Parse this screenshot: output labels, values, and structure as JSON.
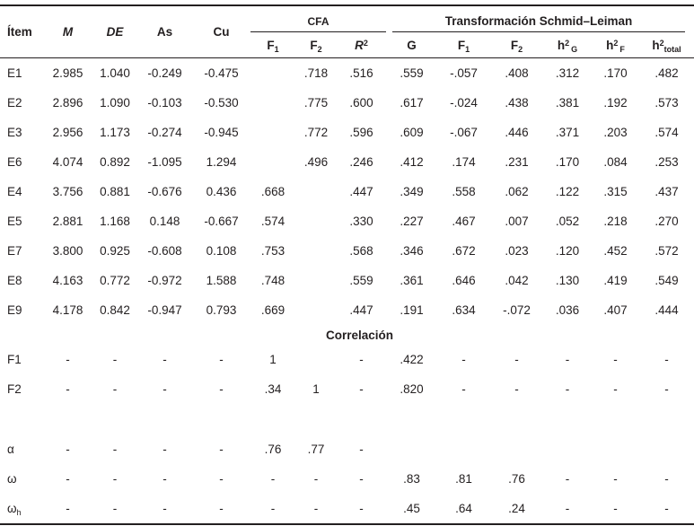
{
  "colors": {
    "text": "#231f20",
    "rule": "#231f20",
    "background": "#ffffff"
  },
  "table": {
    "stub_header": "Ítem",
    "descriptive_headers": {
      "m": "M",
      "de": "DE",
      "as": "As",
      "cu": "Cu"
    },
    "spanners": {
      "cfa": "CFA",
      "schmid_leiman": "Transformación Schmid–Leiman"
    },
    "sub_headers": {
      "cfa_f1": {
        "base": "F",
        "sub": "1"
      },
      "cfa_f2": {
        "base": "F",
        "sub": "2"
      },
      "r2": {
        "base": "R",
        "sup": "2"
      },
      "g": "G",
      "sl_f1": {
        "base": "F",
        "sub": "1"
      },
      "sl_f2": {
        "base": "F",
        "sub": "2"
      },
      "h2_g": {
        "base": "h",
        "sup": "2",
        "sub": "G"
      },
      "h2_f": {
        "base": "h",
        "sup": "2",
        "sub": "F"
      },
      "h2_total": {
        "base": "h",
        "sup": "2",
        "sub": "total"
      }
    },
    "rows": [
      {
        "label": "E1",
        "cells": [
          "2.985",
          "1.040",
          "-0.249",
          "-0.475",
          "",
          ".718",
          ".516",
          ".559",
          "-.057",
          ".408",
          ".312",
          ".170",
          ".482"
        ]
      },
      {
        "label": "E2",
        "cells": [
          "2.896",
          "1.090",
          "-0.103",
          "-0.530",
          "",
          ".775",
          ".600",
          ".617",
          "-.024",
          ".438",
          ".381",
          ".192",
          ".573"
        ]
      },
      {
        "label": "E3",
        "cells": [
          "2.956",
          "1.173",
          "-0.274",
          "-0.945",
          "",
          ".772",
          ".596",
          ".609",
          "-.067",
          ".446",
          ".371",
          ".203",
          ".574"
        ]
      },
      {
        "label": "E6",
        "cells": [
          "4.074",
          "0.892",
          "-1.095",
          "1.294",
          "",
          ".496",
          ".246",
          ".412",
          ".174",
          ".231",
          ".170",
          ".084",
          ".253"
        ]
      },
      {
        "label": "E4",
        "cells": [
          "3.756",
          "0.881",
          "-0.676",
          "0.436",
          ".668",
          "",
          ".447",
          ".349",
          ".558",
          ".062",
          ".122",
          ".315",
          ".437"
        ]
      },
      {
        "label": "E5",
        "cells": [
          "2.881",
          "1.168",
          "0.148",
          "-0.667",
          ".574",
          "",
          ".330",
          ".227",
          ".467",
          ".007",
          ".052",
          ".218",
          ".270"
        ]
      },
      {
        "label": "E7",
        "cells": [
          "3.800",
          "0.925",
          "-0.608",
          "0.108",
          ".753",
          "",
          ".568",
          ".346",
          ".672",
          ".023",
          ".120",
          ".452",
          ".572"
        ]
      },
      {
        "label": "E8",
        "cells": [
          "4.163",
          "0.772",
          "-0.972",
          "1.588",
          ".748",
          "",
          ".559",
          ".361",
          ".646",
          ".042",
          ".130",
          ".419",
          ".549"
        ]
      },
      {
        "label": "E9",
        "cells": [
          "4.178",
          "0.842",
          "-0.947",
          "0.793",
          ".669",
          "",
          ".447",
          ".191",
          ".634",
          "-.072",
          ".036",
          ".407",
          ".444"
        ]
      },
      {
        "type": "section",
        "label": "Correlación"
      },
      {
        "label": "F1",
        "cells": [
          "-",
          "-",
          "-",
          "-",
          "1",
          "",
          "-",
          ".422",
          "-",
          "-",
          "-",
          "-",
          "-"
        ]
      },
      {
        "label": "F2",
        "cells": [
          "-",
          "-",
          "-",
          "-",
          ".34",
          "1",
          "-",
          ".820",
          "-",
          "-",
          "-",
          "-",
          "-"
        ]
      },
      {
        "type": "spacer"
      },
      {
        "label": "α",
        "cells": [
          "-",
          "-",
          "-",
          "-",
          ".76",
          ".77",
          "-",
          "",
          "",
          "",
          "",
          "",
          ""
        ]
      },
      {
        "label": "ω",
        "cells": [
          "-",
          "-",
          "-",
          "-",
          "-",
          "-",
          "-",
          ".83",
          ".81",
          ".76",
          "-",
          "-",
          "-"
        ]
      },
      {
        "label": "ω",
        "label_sub": "h",
        "cells": [
          "-",
          "-",
          "-",
          "-",
          "-",
          "-",
          "-",
          ".45",
          ".64",
          ".24",
          "-",
          "-",
          "-"
        ]
      }
    ]
  }
}
